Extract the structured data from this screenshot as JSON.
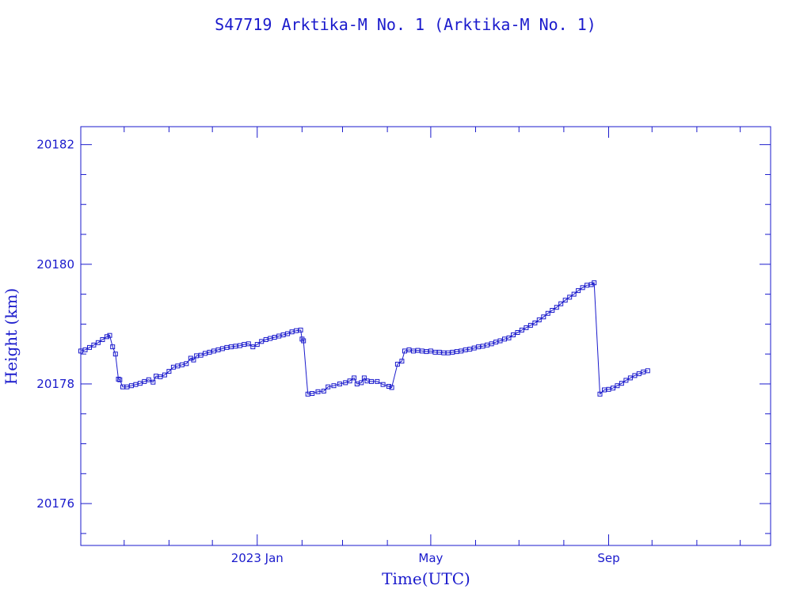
{
  "chart_data": {
    "type": "line",
    "title": "S47719 Arktika-M No. 1  (Arktika-M No. 1)",
    "xlabel": "Time(UTC)",
    "ylabel": "Height (km)",
    "ylim": [
      20175.3,
      20182.3
    ],
    "xlim": [
      "2022-09-01",
      "2023-12-22"
    ],
    "x_ticks": [
      {
        "date": "2023-01-01",
        "label": "2023 Jan"
      },
      {
        "date": "2023-05-01",
        "label": "May"
      },
      {
        "date": "2023-09-01",
        "label": "Sep"
      }
    ],
    "x_minor_dates": [
      "2022-09-01",
      "2022-10-01",
      "2022-11-01",
      "2022-12-01",
      "2023-01-01",
      "2023-02-01",
      "2023-03-01",
      "2023-04-01",
      "2023-05-01",
      "2023-06-01",
      "2023-07-01",
      "2023-08-01",
      "2023-09-01",
      "2023-10-01",
      "2023-11-01",
      "2023-12-01"
    ],
    "y_ticks": [
      20176,
      20178,
      20180,
      20182
    ],
    "y_minor_step": 0.5,
    "grid": false,
    "marker": "square",
    "colors": {
      "series": "#1a1acc",
      "axes": "#1a1acc",
      "text": "#1a1acc"
    },
    "series": [
      {
        "points": [
          [
            "2022-09-01",
            20178.55
          ],
          [
            "2022-09-04",
            20178.57
          ],
          [
            "2022-09-07",
            20178.61
          ],
          [
            "2022-09-10",
            20178.65
          ],
          [
            "2022-09-13",
            20178.69
          ],
          [
            "2022-09-16",
            20178.74
          ],
          [
            "2022-09-19",
            20178.79
          ],
          [
            "2022-09-21",
            20178.81
          ],
          [
            "2022-09-23",
            20178.62
          ],
          [
            "2022-09-25",
            20178.5
          ],
          [
            "2022-09-27",
            20178.08
          ],
          [
            "2022-09-28",
            20178.07
          ],
          [
            "2022-09-30",
            20177.95
          ],
          [
            "2022-10-03",
            20177.95
          ],
          [
            "2022-10-06",
            20177.97
          ],
          [
            "2022-10-09",
            20177.99
          ],
          [
            "2022-10-12",
            20178.01
          ],
          [
            "2022-10-15",
            20178.04
          ],
          [
            "2022-10-18",
            20178.07
          ],
          [
            "2022-10-21",
            20178.03
          ],
          [
            "2022-10-23",
            20178.13
          ],
          [
            "2022-10-26",
            20178.12
          ],
          [
            "2022-10-29",
            20178.15
          ],
          [
            "2022-11-01",
            20178.21
          ],
          [
            "2022-11-04",
            20178.28
          ],
          [
            "2022-11-07",
            20178.3
          ],
          [
            "2022-11-10",
            20178.32
          ],
          [
            "2022-11-13",
            20178.34
          ],
          [
            "2022-11-16",
            20178.43
          ],
          [
            "2022-11-18",
            20178.4
          ],
          [
            "2022-11-20",
            20178.47
          ],
          [
            "2022-11-23",
            20178.48
          ],
          [
            "2022-11-26",
            20178.51
          ],
          [
            "2022-11-29",
            20178.53
          ],
          [
            "2022-12-02",
            20178.55
          ],
          [
            "2022-12-05",
            20178.57
          ],
          [
            "2022-12-08",
            20178.59
          ],
          [
            "2022-12-11",
            20178.61
          ],
          [
            "2022-12-14",
            20178.62
          ],
          [
            "2022-12-17",
            20178.63
          ],
          [
            "2022-12-20",
            20178.64
          ],
          [
            "2022-12-23",
            20178.66
          ],
          [
            "2022-12-26",
            20178.67
          ],
          [
            "2022-12-29",
            20178.62
          ],
          [
            "2023-01-01",
            20178.66
          ],
          [
            "2023-01-04",
            20178.71
          ],
          [
            "2023-01-07",
            20178.74
          ],
          [
            "2023-01-10",
            20178.76
          ],
          [
            "2023-01-13",
            20178.78
          ],
          [
            "2023-01-16",
            20178.8
          ],
          [
            "2023-01-19",
            20178.82
          ],
          [
            "2023-01-22",
            20178.84
          ],
          [
            "2023-01-25",
            20178.87
          ],
          [
            "2023-01-28",
            20178.89
          ],
          [
            "2023-01-31",
            20178.9
          ],
          [
            "2023-02-01",
            20178.75
          ],
          [
            "2023-02-02",
            20178.72
          ],
          [
            "2023-02-05",
            20177.83
          ],
          [
            "2023-02-08",
            20177.84
          ],
          [
            "2023-02-12",
            20177.87
          ],
          [
            "2023-02-16",
            20177.88
          ],
          [
            "2023-02-19",
            20177.95
          ],
          [
            "2023-02-23",
            20177.97
          ],
          [
            "2023-02-27",
            20178.0
          ],
          [
            "2023-03-03",
            20178.02
          ],
          [
            "2023-03-06",
            20178.05
          ],
          [
            "2023-03-09",
            20178.1
          ],
          [
            "2023-03-11",
            20178.0
          ],
          [
            "2023-03-14",
            20178.02
          ],
          [
            "2023-03-16",
            20178.1
          ],
          [
            "2023-03-18",
            20178.05
          ],
          [
            "2023-03-21",
            20178.04
          ],
          [
            "2023-03-25",
            20178.04
          ],
          [
            "2023-03-29",
            20177.99
          ],
          [
            "2023-04-02",
            20177.96
          ],
          [
            "2023-04-04",
            20177.94
          ],
          [
            "2023-04-08",
            20178.33
          ],
          [
            "2023-04-11",
            20178.38
          ],
          [
            "2023-04-13",
            20178.55
          ],
          [
            "2023-04-16",
            20178.57
          ],
          [
            "2023-04-19",
            20178.55
          ],
          [
            "2023-04-22",
            20178.56
          ],
          [
            "2023-04-25",
            20178.55
          ],
          [
            "2023-04-28",
            20178.54
          ],
          [
            "2023-05-01",
            20178.55
          ],
          [
            "2023-05-04",
            20178.53
          ],
          [
            "2023-05-07",
            20178.53
          ],
          [
            "2023-05-10",
            20178.52
          ],
          [
            "2023-05-13",
            20178.52
          ],
          [
            "2023-05-16",
            20178.53
          ],
          [
            "2023-05-19",
            20178.54
          ],
          [
            "2023-05-22",
            20178.55
          ],
          [
            "2023-05-25",
            20178.57
          ],
          [
            "2023-05-28",
            20178.58
          ],
          [
            "2023-05-31",
            20178.6
          ],
          [
            "2023-06-03",
            20178.62
          ],
          [
            "2023-06-06",
            20178.63
          ],
          [
            "2023-06-09",
            20178.65
          ],
          [
            "2023-06-12",
            20178.67
          ],
          [
            "2023-06-15",
            20178.7
          ],
          [
            "2023-06-18",
            20178.72
          ],
          [
            "2023-06-21",
            20178.75
          ],
          [
            "2023-06-24",
            20178.77
          ],
          [
            "2023-06-27",
            20178.82
          ],
          [
            "2023-06-30",
            20178.86
          ],
          [
            "2023-07-03",
            20178.9
          ],
          [
            "2023-07-06",
            20178.94
          ],
          [
            "2023-07-09",
            20178.98
          ],
          [
            "2023-07-12",
            20179.02
          ],
          [
            "2023-07-15",
            20179.07
          ],
          [
            "2023-07-18",
            20179.12
          ],
          [
            "2023-07-21",
            20179.18
          ],
          [
            "2023-07-24",
            20179.23
          ],
          [
            "2023-07-27",
            20179.28
          ],
          [
            "2023-07-30",
            20179.34
          ],
          [
            "2023-08-02",
            20179.4
          ],
          [
            "2023-08-05",
            20179.45
          ],
          [
            "2023-08-08",
            20179.5
          ],
          [
            "2023-08-11",
            20179.56
          ],
          [
            "2023-08-14",
            20179.61
          ],
          [
            "2023-08-17",
            20179.65
          ],
          [
            "2023-08-20",
            20179.66
          ],
          [
            "2023-08-22",
            20179.69
          ],
          [
            "2023-08-26",
            20177.83
          ],
          [
            "2023-08-29",
            20177.9
          ],
          [
            "2023-09-01",
            20177.91
          ],
          [
            "2023-09-04",
            20177.93
          ],
          [
            "2023-09-07",
            20177.97
          ],
          [
            "2023-09-10",
            20178.01
          ],
          [
            "2023-09-13",
            20178.06
          ],
          [
            "2023-09-16",
            20178.1
          ],
          [
            "2023-09-19",
            20178.14
          ],
          [
            "2023-09-22",
            20178.17
          ],
          [
            "2023-09-25",
            20178.2
          ],
          [
            "2023-09-28",
            20178.22
          ]
        ]
      }
    ]
  }
}
